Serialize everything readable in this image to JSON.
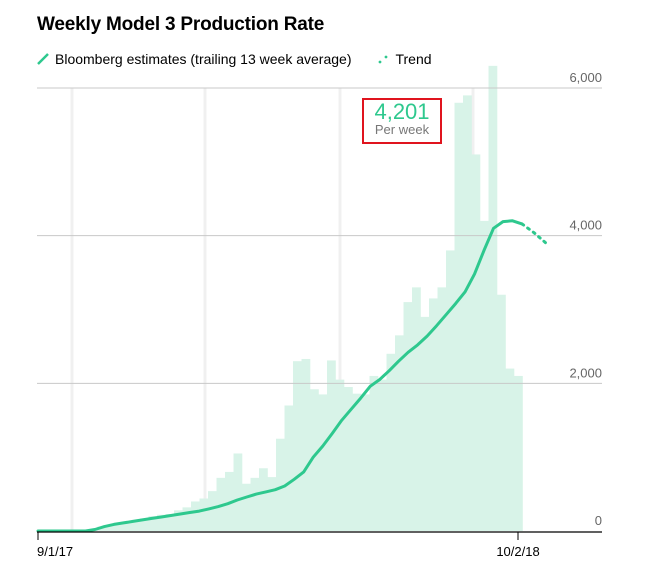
{
  "chart_data": {
    "type": "bar+line",
    "title": "Weekly Model 3 Production Rate",
    "legend": [
      {
        "label": "Bloomberg estimates (trailing 13 week average)",
        "style": "solid-line"
      },
      {
        "label": "Trend",
        "style": "dotted-line"
      }
    ],
    "y_ticks": [
      "6,000",
      "4,000",
      "2,000",
      "0"
    ],
    "y_tick_values": [
      6000,
      4000,
      2000,
      0
    ],
    "ylim": [
      0,
      6000
    ],
    "x_ticks": [
      "9/1/17",
      "10/2/18"
    ],
    "callout": {
      "value": "4,201",
      "label": "Per week"
    },
    "colors": {
      "bars": "#d8f3e8",
      "line": "#2ec88e",
      "callout_border": "#e0141e",
      "grid": "#c8c8c8"
    },
    "weekly_bars": [
      0,
      0,
      0,
      0,
      0,
      0,
      20,
      60,
      80,
      110,
      130,
      150,
      170,
      200,
      220,
      230,
      280,
      320,
      400,
      440,
      540,
      720,
      800,
      1050,
      640,
      720,
      850,
      730,
      1250,
      1700,
      2300,
      2330,
      1920,
      1850,
      2310,
      2050,
      1950,
      1860,
      1850,
      2100,
      2050,
      2400,
      2650,
      3100,
      3300,
      2900,
      3150,
      3300,
      3800,
      5800,
      5900,
      5100,
      4200,
      6300,
      3200,
      2200,
      2100
    ],
    "trailing_avg_line": [
      0,
      0,
      0,
      0,
      0,
      0,
      20,
      60,
      90,
      110,
      130,
      150,
      170,
      190,
      210,
      230,
      250,
      270,
      300,
      330,
      370,
      420,
      460,
      500,
      530,
      560,
      610,
      700,
      800,
      1000,
      1150,
      1320,
      1500,
      1650,
      1800,
      1960,
      2050,
      2170,
      2300,
      2420,
      2520,
      2640,
      2780,
      2930,
      3080,
      3240,
      3480,
      3800,
      4100,
      4190,
      4201,
      4160
    ],
    "trend_line": [
      4160,
      4040,
      3900
    ],
    "grid": true
  }
}
